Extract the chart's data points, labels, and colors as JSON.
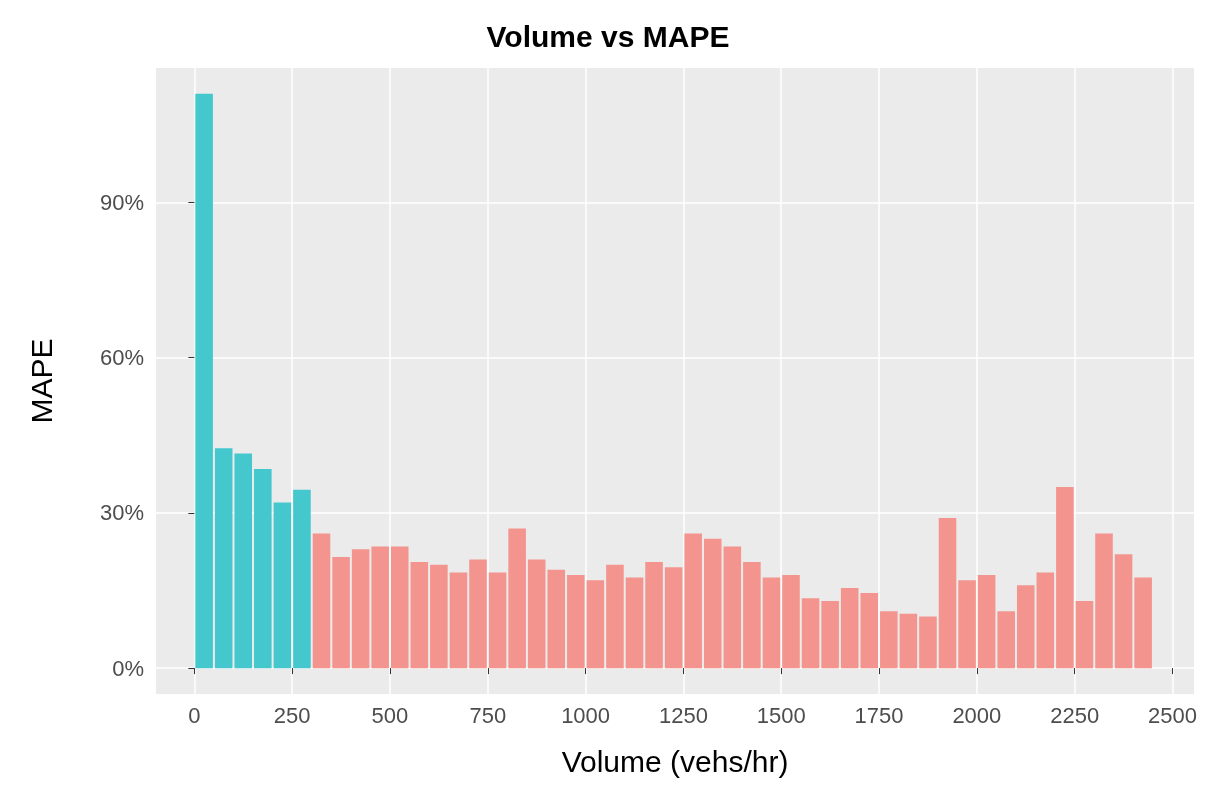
{
  "chart_data": {
    "type": "histogram",
    "title": "Volume vs MAPE",
    "xlabel": "Volume (vehs/hr)",
    "ylabel": "MAPE",
    "bins": [
      0,
      50,
      100,
      150,
      200,
      250,
      300,
      350,
      400,
      450,
      500,
      550,
      600,
      650,
      700,
      750,
      800,
      850,
      900,
      950,
      1000,
      1050,
      1100,
      1150,
      1200,
      1250,
      1300,
      1350,
      1400,
      1450,
      1500,
      1550,
      1600,
      1650,
      1700,
      1750,
      1800,
      1850,
      1900,
      1950,
      2000,
      2050,
      2100,
      2150,
      2200,
      2250,
      2300,
      2350,
      2400,
      2450
    ],
    "values": [
      111,
      42.5,
      41.5,
      38.5,
      32,
      34.5,
      26,
      21.5,
      23,
      23.5,
      23.5,
      20.5,
      20,
      18.5,
      21,
      18.5,
      27,
      21,
      19,
      18,
      17,
      20,
      17.5,
      20.5,
      19.5,
      26,
      25,
      23.5,
      20.5,
      17.5,
      18,
      13.5,
      13,
      15.5,
      14.5,
      11,
      10.5,
      10,
      29,
      17,
      18,
      11,
      16,
      18.5,
      35,
      13,
      26,
      22,
      17.5
    ],
    "colors": [
      "#44c8ce",
      "#44c8ce",
      "#44c8ce",
      "#44c8ce",
      "#44c8ce",
      "#44c8ce",
      "#f4948e",
      "#f4948e",
      "#f4948e",
      "#f4948e",
      "#f4948e",
      "#f4948e",
      "#f4948e",
      "#f4948e",
      "#f4948e",
      "#f4948e",
      "#f4948e",
      "#f4948e",
      "#f4948e",
      "#f4948e",
      "#f4948e",
      "#f4948e",
      "#f4948e",
      "#f4948e",
      "#f4948e",
      "#f4948e",
      "#f4948e",
      "#f4948e",
      "#f4948e",
      "#f4948e",
      "#f4948e",
      "#f4948e",
      "#f4948e",
      "#f4948e",
      "#f4948e",
      "#f4948e",
      "#f4948e",
      "#f4948e",
      "#f4948e",
      "#f4948e",
      "#f4948e",
      "#f4948e",
      "#f4948e",
      "#f4948e",
      "#f4948e",
      "#f4948e",
      "#f4948e",
      "#f4948e",
      "#f4948e"
    ],
    "xlim": [
      -98,
      2555
    ],
    "xticks": [
      0,
      250,
      500,
      750,
      1000,
      1250,
      1500,
      1750,
      2000,
      2250,
      2500
    ],
    "ylim": [
      -5,
      116
    ],
    "yticks": [
      {
        "value": 0,
        "label": "0%"
      },
      {
        "value": 30,
        "label": "30%"
      },
      {
        "value": 60,
        "label": "60%"
      },
      {
        "value": 90,
        "label": "90%"
      }
    ],
    "grid": true
  }
}
